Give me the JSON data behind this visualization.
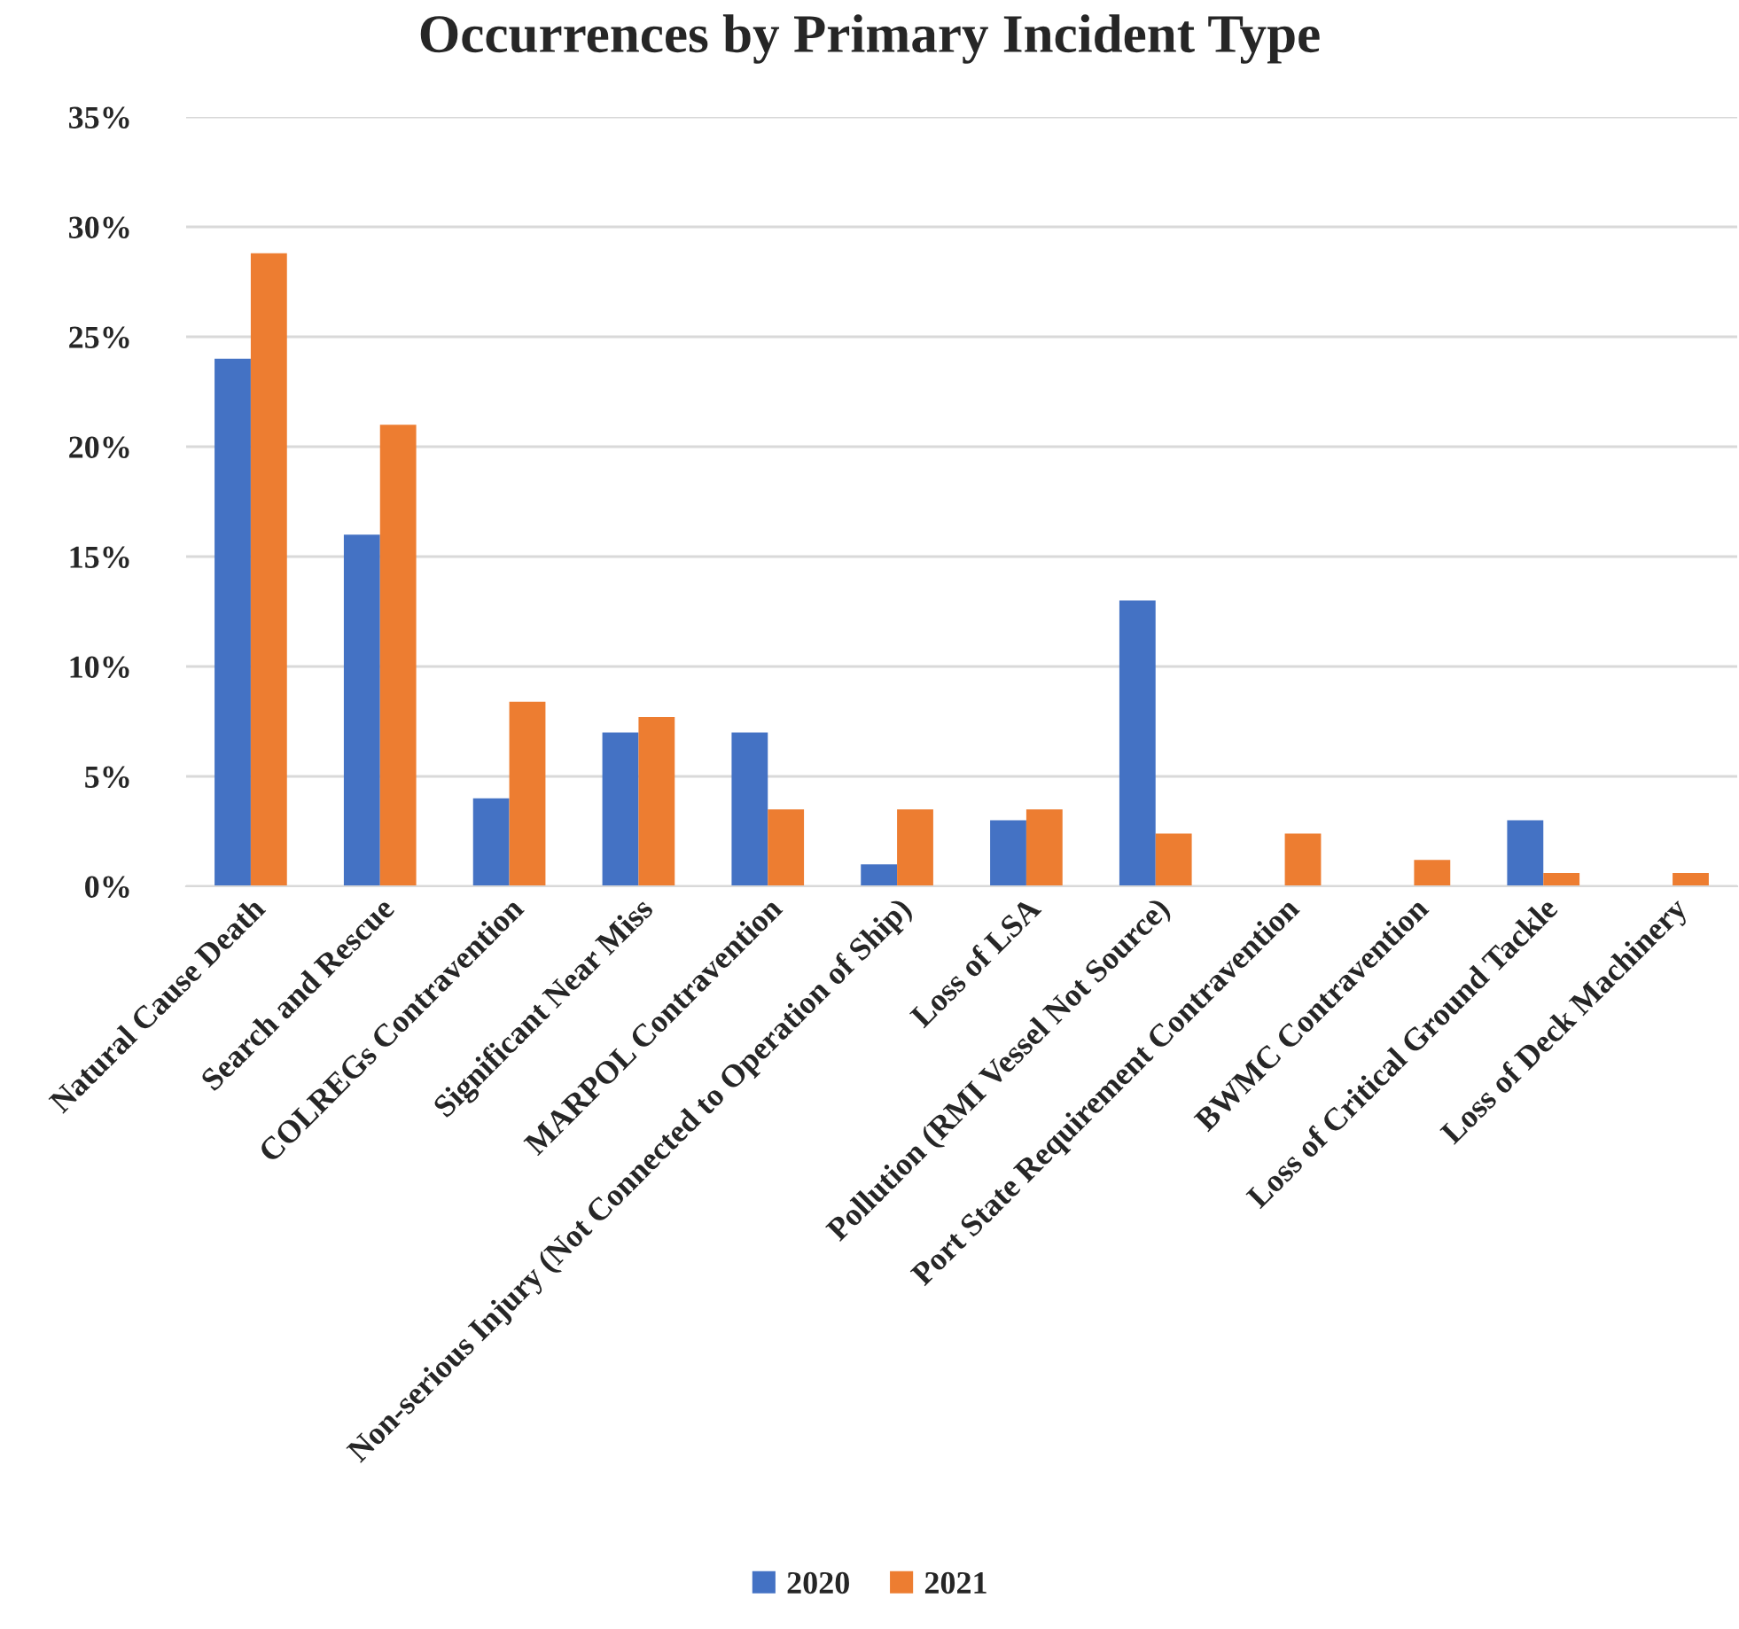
{
  "chart_data": {
    "type": "bar",
    "title": "Occurrences by Primary Incident Type",
    "categories": [
      "Natural Cause Death",
      "Search and Rescue",
      "COLREGs Contravention",
      "Significant Near Miss",
      "MARPOL Contravention",
      "Non-serious Injury (Not Connected to Operation of Ship)",
      "Loss of LSA",
      "Pollution (RMI Vessel Not Source)",
      "Port State Requirement Contravention",
      "BWMC Contravention",
      "Loss of Critical Ground Tackle",
      "Loss of Deck Machinery"
    ],
    "series": [
      {
        "name": "2020",
        "color": "#4472c4",
        "values": [
          24,
          16,
          4,
          7,
          7,
          1,
          3,
          13,
          null,
          null,
          3,
          null
        ]
      },
      {
        "name": "2021",
        "color": "#ed7d31",
        "values": [
          28.8,
          21,
          8.4,
          7.7,
          3.5,
          3.5,
          3.5,
          2.4,
          2.4,
          1.2,
          0.6,
          0.6
        ]
      }
    ],
    "ylim": [
      0,
      35
    ],
    "yticks": [
      {
        "value": 0,
        "label": "0%"
      },
      {
        "value": 5,
        "label": "5%"
      },
      {
        "value": 10,
        "label": "10%"
      },
      {
        "value": 15,
        "label": "15%"
      },
      {
        "value": 20,
        "label": "20%"
      },
      {
        "value": 25,
        "label": "25%"
      },
      {
        "value": 30,
        "label": "30%"
      },
      {
        "value": 35,
        "label": "35%"
      }
    ],
    "grid": "y",
    "legend": "bottom"
  }
}
